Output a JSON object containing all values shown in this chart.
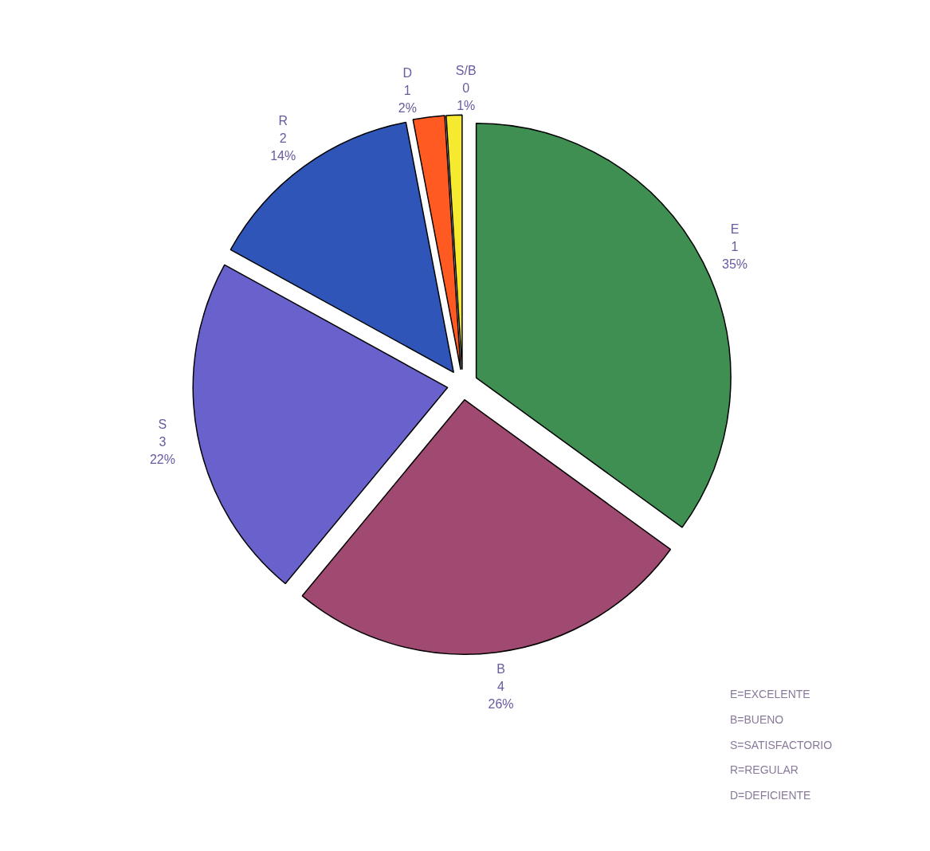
{
  "chart_data": {
    "type": "pie",
    "categories": [
      "E",
      "B",
      "S",
      "R",
      "D",
      "S/B"
    ],
    "values": [
      35,
      26,
      22,
      14,
      2,
      1
    ],
    "value_labels": [
      "1\n35%",
      "4\n26%",
      "3\n22%",
      "2\n14%",
      "1\n2%",
      "0\n1%"
    ],
    "colors": [
      "#3f8f52",
      "#a04a72",
      "#6a62cc",
      "#2f55b8",
      "#ff5a22",
      "#f5ea30"
    ],
    "annotations": [
      "E=EXCELENTE",
      "B=BUENO",
      "S=SATISFACTORIO",
      "R=REGULAR",
      "D=DEFICIENTE"
    ]
  }
}
